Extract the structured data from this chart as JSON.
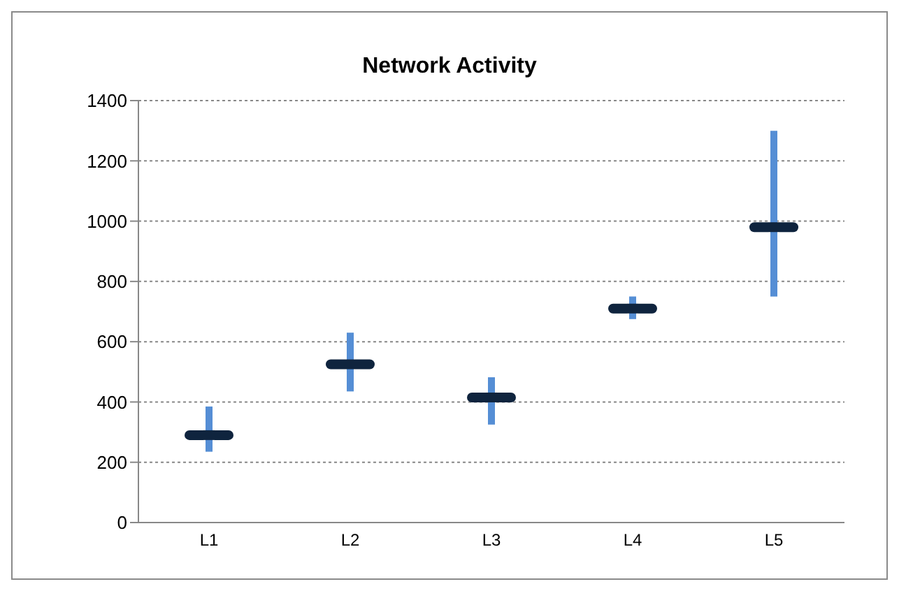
{
  "chart_data": {
    "type": "scatter",
    "title": "Network Activity",
    "categories": [
      "L1",
      "L2",
      "L3",
      "L4",
      "L5"
    ],
    "series": [
      {
        "color": "#0f243e",
        "values": [
          290,
          525,
          415,
          710,
          980
        ],
        "errors": [
          [
            235,
            385
          ],
          [
            435,
            630
          ],
          [
            325,
            482
          ],
          [
            675,
            750
          ],
          [
            750,
            1300
          ]
        ]
      }
    ],
    "ylim": [
      0,
      1400
    ],
    "yticks": [
      0,
      200,
      400,
      600,
      800,
      1000,
      1200,
      1400
    ],
    "grid": "y",
    "legend": false
  }
}
